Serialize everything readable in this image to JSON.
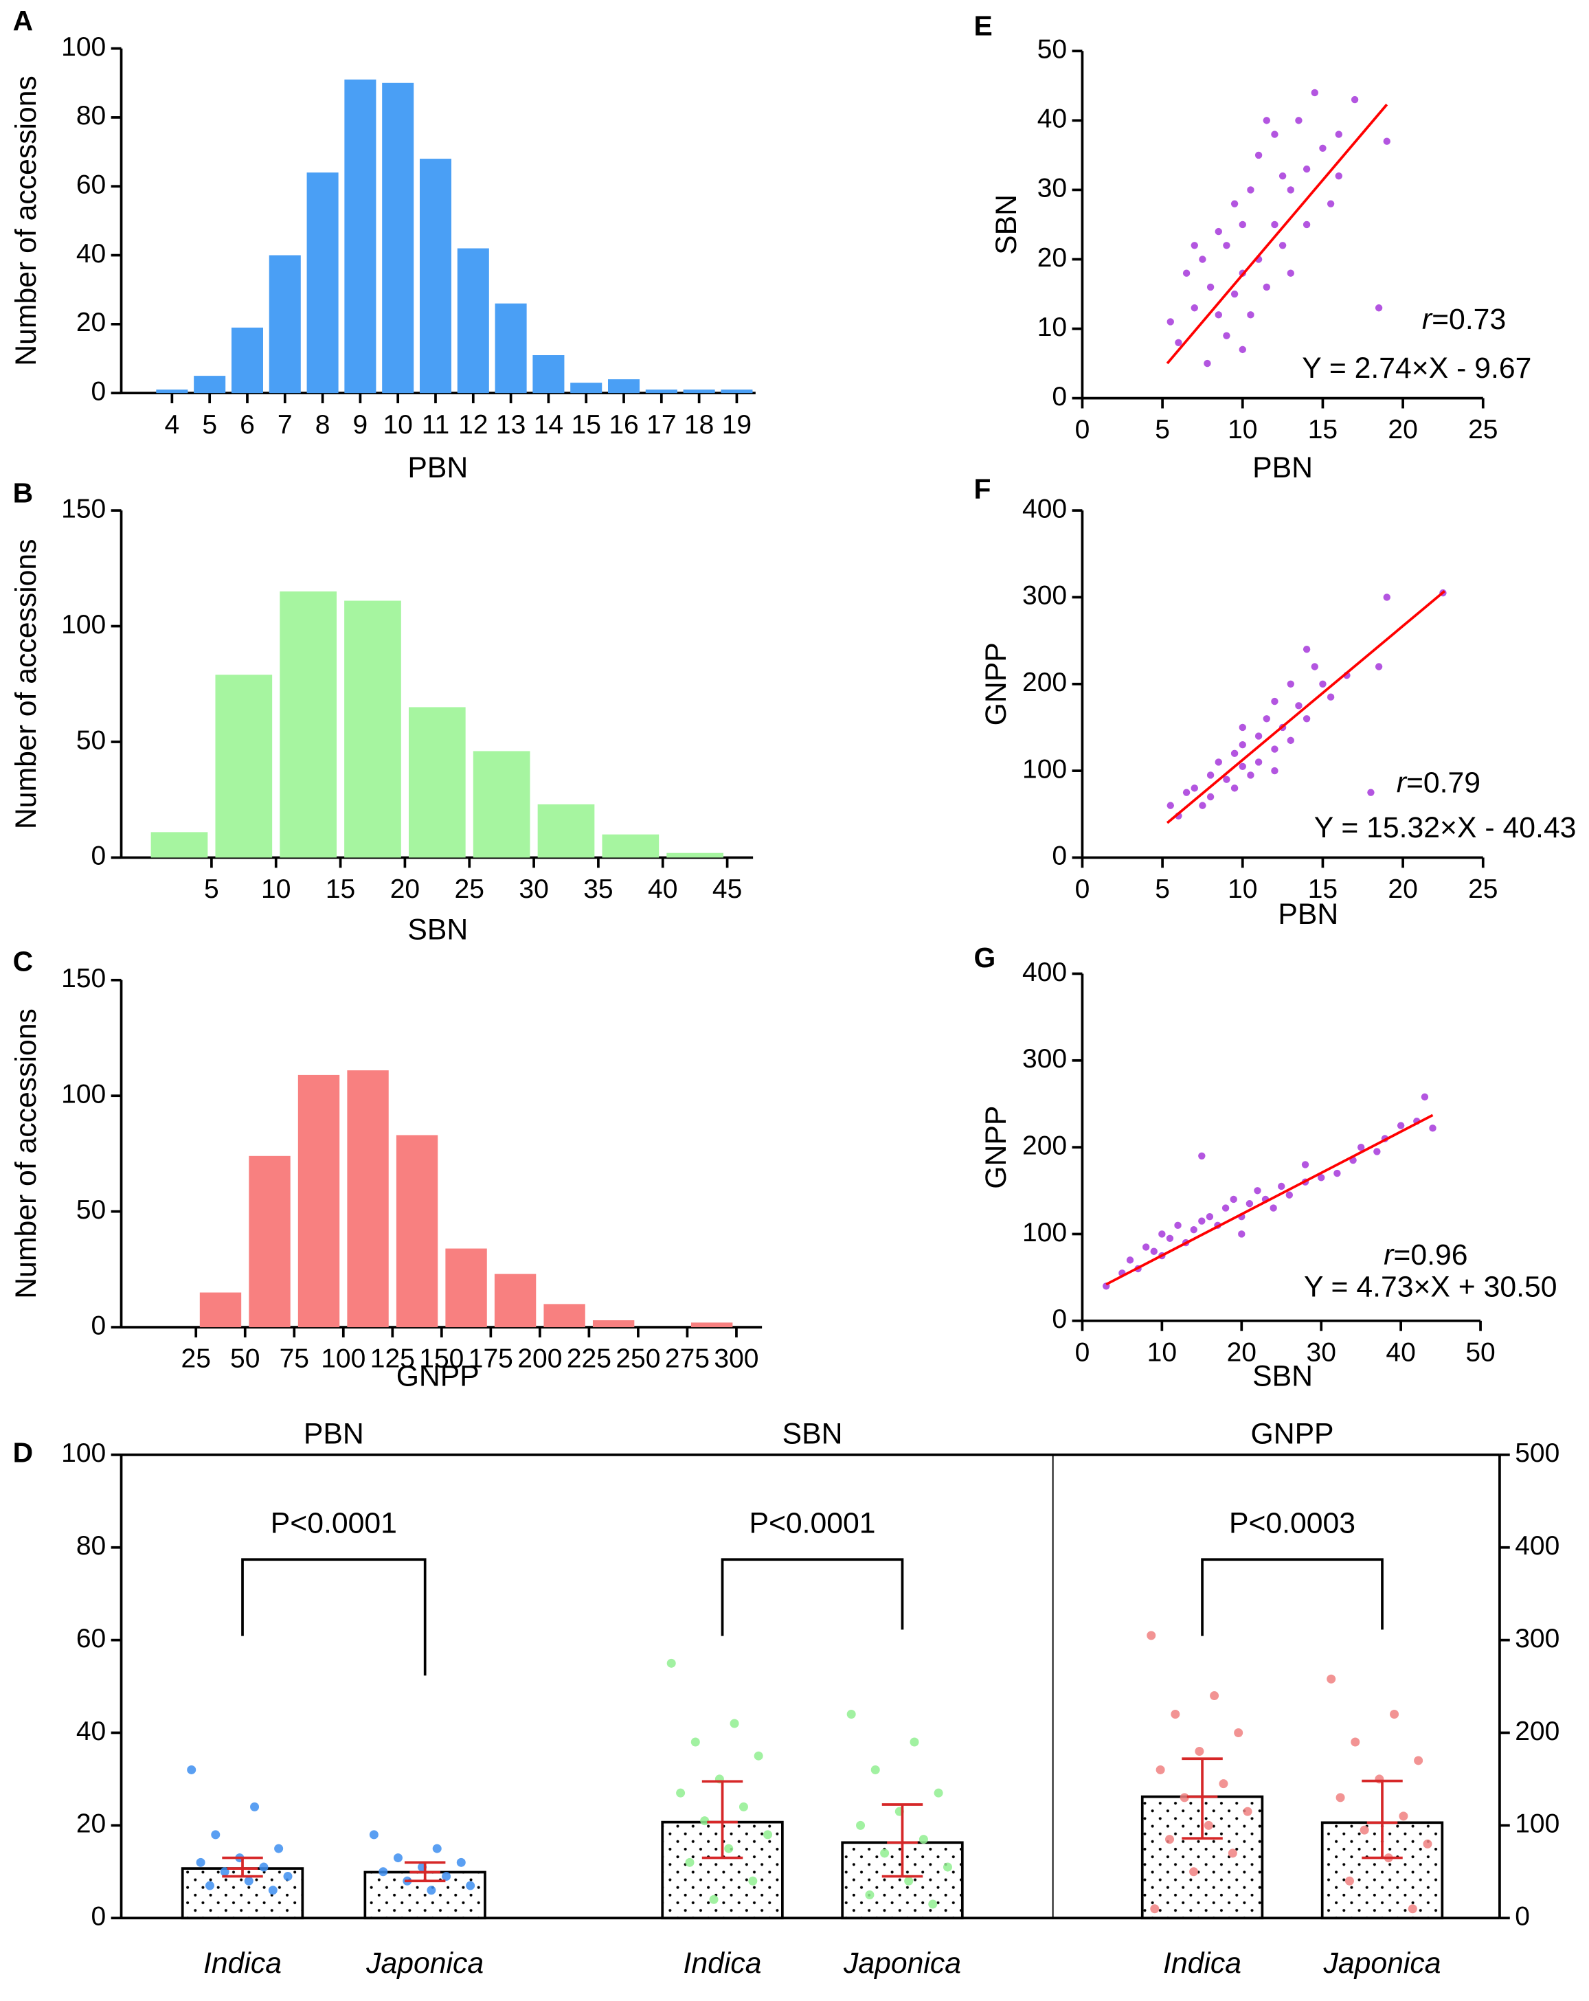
{
  "chart_data": [
    {
      "type": "bar",
      "panel": "A",
      "x_label": "PBN",
      "y_label": "Number of accessions",
      "color": "#4a9ff5",
      "categories": [
        "4",
        "5",
        "6",
        "7",
        "8",
        "9",
        "10",
        "11",
        "12",
        "13",
        "14",
        "15",
        "16",
        "17",
        "18",
        "19"
      ],
      "values": [
        1,
        5,
        19,
        40,
        64,
        91,
        90,
        68,
        42,
        26,
        11,
        3,
        4,
        1,
        1,
        1
      ],
      "ylim": [
        0,
        100
      ],
      "yticks": [
        0,
        20,
        40,
        60,
        80,
        100
      ]
    },
    {
      "type": "histogram",
      "panel": "B",
      "x_label": "SBN",
      "y_label": "Number of accessions",
      "color": "#a6f5a0",
      "bins": [
        0,
        5,
        10,
        15,
        20,
        25,
        30,
        35,
        40,
        45
      ],
      "values": [
        11,
        79,
        115,
        111,
        65,
        46,
        23,
        10,
        2
      ],
      "xlim": [
        -2,
        47
      ],
      "xticks": [
        5,
        10,
        15,
        20,
        25,
        30,
        35,
        40,
        45
      ],
      "ylim": [
        0,
        150
      ],
      "yticks": [
        0,
        50,
        100,
        150
      ]
    },
    {
      "type": "histogram",
      "panel": "C",
      "x_label": "GNPP",
      "y_label": "Number of accessions",
      "color": "#f88080",
      "bins": [
        25,
        50,
        75,
        100,
        125,
        150,
        175,
        200,
        225,
        250,
        275,
        300
      ],
      "values": [
        15,
        74,
        109,
        111,
        83,
        34,
        23,
        10,
        3,
        0,
        2
      ],
      "xlim": [
        -13,
        313
      ],
      "xticks": [
        25,
        50,
        75,
        100,
        125,
        150,
        175,
        200,
        225,
        250,
        275,
        300
      ],
      "ylim": [
        0,
        150
      ],
      "yticks": [
        0,
        50,
        100,
        150
      ]
    },
    {
      "type": "dotbar",
      "panel": "D",
      "ylim": [
        0,
        100
      ],
      "yticks": [
        0,
        20,
        40,
        60,
        80,
        100
      ],
      "y2lim": [
        0,
        500
      ],
      "y2ticks": [
        0,
        100,
        200,
        300,
        400,
        500
      ],
      "groups": [
        {
          "title": "PBN",
          "annotation": "P<0.0001",
          "color": "#3d8ef0",
          "categories": [
            "Indica",
            "Japonica"
          ],
          "values": [
            10.7,
            9.9
          ],
          "error_low": [
            9,
            8
          ],
          "error_high": [
            13,
            12
          ],
          "points": [
            [
              32,
              24,
              18,
              15,
              13,
              12,
              11,
              10,
              9,
              8,
              7,
              6
            ],
            [
              18,
              15,
              13,
              12,
              11,
              10,
              9,
              8,
              7,
              6
            ]
          ]
        },
        {
          "title": "SBN",
          "annotation": "P<0.0001",
          "color": "#90ee90",
          "categories": [
            "Indica",
            "Japonica"
          ],
          "values": [
            20.7,
            16.3
          ],
          "error_low": [
            13,
            9
          ],
          "error_high": [
            29.5,
            24.5
          ],
          "points": [
            [
              55,
              42,
              38,
              35,
              30,
              27,
              24,
              21,
              18,
              15,
              12,
              8,
              4
            ],
            [
              44,
              38,
              32,
              27,
              23,
              20,
              17,
              14,
              11,
              8,
              5,
              3
            ]
          ]
        },
        {
          "title": "GNPP",
          "annotation": "P<0.0003",
          "axis": "y2",
          "color": "#f08080",
          "categories": [
            "Indica",
            "Japonica"
          ],
          "values": [
            131,
            103
          ],
          "error_low": [
            86,
            65
          ],
          "error_high": [
            172,
            148
          ],
          "points": [
            [
              305,
              240,
              220,
              200,
              180,
              160,
              145,
              130,
              115,
              100,
              85,
              70,
              50,
              10
            ],
            [
              258,
              220,
              190,
              170,
              150,
              130,
              110,
              95,
              80,
              65,
              40,
              10
            ]
          ]
        }
      ]
    },
    {
      "type": "scatter",
      "panel": "E",
      "x_label": "PBN",
      "y_label": "SBN",
      "color": "#b355e0",
      "x": [
        5.5,
        6,
        6.5,
        7,
        7.5,
        7.8,
        8,
        8.5,
        9,
        9,
        9.5,
        10,
        10,
        10.5,
        10.5,
        11,
        11,
        11.5,
        12,
        12,
        12.5,
        13,
        13,
        13.5,
        14,
        14,
        15,
        15.5,
        16,
        17,
        18.5,
        19,
        7,
        8.5,
        9.5,
        11.5,
        12.5,
        10,
        14.5,
        16
      ],
      "values": [
        11,
        8,
        18,
        13,
        20,
        5,
        16,
        12,
        22,
        9,
        15,
        18,
        25,
        12,
        30,
        20,
        35,
        16,
        25,
        38,
        22,
        30,
        18,
        40,
        33,
        25,
        36,
        28,
        32,
        43,
        13,
        37,
        22,
        24,
        28,
        40,
        32,
        7,
        44,
        38
      ],
      "fit_line": {
        "x": [
          5.3,
          19
        ],
        "y": [
          5,
          42.3
        ],
        "color": "#ff0000"
      },
      "r_label": {
        "r": "r",
        "value": "=0.73"
      },
      "equation": "Y = 2.74×X - 9.67",
      "xlim": [
        0,
        25
      ],
      "xticks": [
        0,
        5,
        10,
        15,
        20,
        25
      ],
      "ylim": [
        0,
        50
      ],
      "yticks": [
        0,
        10,
        20,
        30,
        40,
        50
      ]
    },
    {
      "type": "scatter",
      "panel": "F",
      "x_label": "PBN",
      "y_label": "GNPP",
      "color": "#b355e0",
      "x": [
        5.5,
        6,
        6.5,
        7,
        7.5,
        8,
        8,
        8.5,
        9,
        9.5,
        9.5,
        10,
        10,
        10.5,
        11,
        11,
        11.5,
        12,
        12,
        12.5,
        13,
        13,
        13.5,
        14,
        14,
        15,
        15.5,
        16.5,
        18,
        18.5,
        19,
        22.5,
        10,
        12,
        14.5
      ],
      "values": [
        60,
        48,
        75,
        80,
        60,
        95,
        70,
        110,
        90,
        120,
        80,
        105,
        130,
        95,
        140,
        110,
        160,
        125,
        180,
        150,
        200,
        135,
        175,
        240,
        160,
        200,
        185,
        210,
        75,
        220,
        300,
        305,
        150,
        100,
        220
      ],
      "fit_line": {
        "x": [
          5.3,
          22.6
        ],
        "y": [
          40,
          307
        ],
        "color": "#ff0000"
      },
      "r_label": {
        "r": "r",
        "value": "=0.79"
      },
      "equation": "Y = 15.32×X - 40.43",
      "xlim": [
        0,
        25
      ],
      "xticks": [
        0,
        5,
        10,
        15,
        20,
        25
      ],
      "ylim": [
        0,
        400
      ],
      "yticks": [
        0,
        100,
        200,
        300,
        400
      ]
    },
    {
      "type": "scatter",
      "panel": "G",
      "x_label": "SBN",
      "y_label": "GNPP",
      "color": "#b355e0",
      "x": [
        3,
        5,
        6,
        7,
        8,
        9,
        10,
        10,
        11,
        12,
        13,
        14,
        15,
        15,
        16,
        17,
        18,
        19,
        20,
        21,
        22,
        23,
        25,
        26,
        28,
        28,
        30,
        32,
        34,
        35,
        37,
        38,
        40,
        42,
        43,
        44,
        20,
        24
      ],
      "values": [
        40,
        55,
        70,
        60,
        85,
        80,
        75,
        100,
        95,
        110,
        90,
        105,
        115,
        190,
        120,
        110,
        130,
        140,
        120,
        135,
        150,
        140,
        155,
        145,
        160,
        180,
        165,
        170,
        185,
        200,
        195,
        210,
        225,
        230,
        258,
        222,
        100,
        130
      ],
      "fit_line": {
        "x": [
          3,
          44
        ],
        "y": [
          42,
          237
        ],
        "color": "#ff0000"
      },
      "r_label": {
        "r": "r",
        "value": "=0.96"
      },
      "equation": "Y = 4.73×X + 30.50",
      "xlim": [
        0,
        50
      ],
      "xticks": [
        0,
        10,
        20,
        30,
        40,
        50
      ],
      "ylim": [
        0,
        400
      ],
      "yticks": [
        0,
        100,
        200,
        300,
        400
      ]
    }
  ]
}
